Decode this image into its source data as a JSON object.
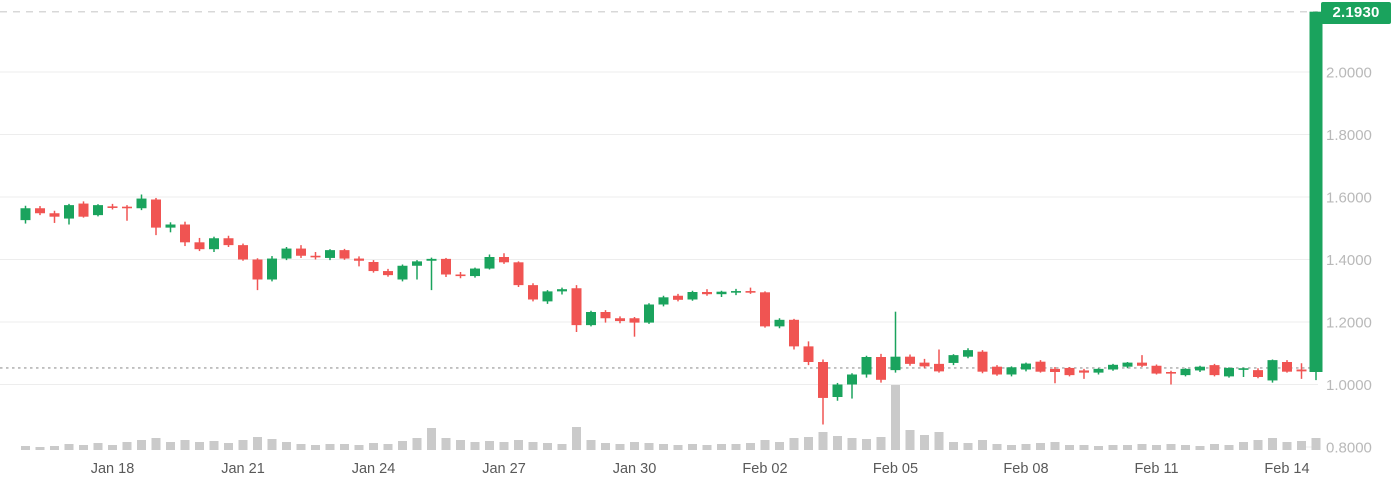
{
  "chart_data": {
    "type": "candlestick",
    "title": "",
    "xlabel": "",
    "ylabel": "",
    "last_price_label": "2.1930",
    "last_price": 2.193,
    "dotted_reference_level": 1.053,
    "ylim": [
      0.8,
      2.24
    ],
    "grid": true,
    "candles_per_day": 3,
    "y_axis": {
      "labels": [
        "2.0000",
        "1.8000",
        "1.6000",
        "1.4000",
        "1.2000",
        "1.0000",
        "0.8000"
      ],
      "values": [
        2.0,
        1.8,
        1.6,
        1.4,
        1.2,
        1.0,
        0.8
      ]
    },
    "x_axis": {
      "labels": [
        {
          "label": "Jan 18",
          "candle_index": 6
        },
        {
          "label": "Jan 21",
          "candle_index": 15
        },
        {
          "label": "Jan 24",
          "candle_index": 24
        },
        {
          "label": "Jan 27",
          "candle_index": 33
        },
        {
          "label": "Jan 30",
          "candle_index": 42
        },
        {
          "label": "Feb 02",
          "candle_index": 51
        },
        {
          "label": "Feb 05",
          "candle_index": 60
        },
        {
          "label": "Feb 08",
          "candle_index": 69
        },
        {
          "label": "Feb 11",
          "candle_index": 78
        },
        {
          "label": "Feb 14",
          "candle_index": 87
        }
      ]
    },
    "colors": {
      "up": "#1AA35D",
      "down": "#F05452",
      "volume": "#CACACA",
      "grid": "#EDEDED",
      "dashed_line": "#D8D8D8",
      "dotted_line": "#B5B5B5",
      "y_label": "#B9B9B9",
      "x_label": "#595959",
      "badge_text": "#FFFFFF",
      "background": "#FFFFFF"
    },
    "candles_format": [
      "open",
      "high",
      "low",
      "close",
      "relative_volume"
    ],
    "candles": [
      [
        1.526,
        1.572,
        1.515,
        1.564,
        4
      ],
      [
        1.564,
        1.571,
        1.542,
        1.548,
        3
      ],
      [
        1.548,
        1.556,
        1.517,
        1.537,
        4
      ],
      [
        1.531,
        1.578,
        1.512,
        1.574,
        6
      ],
      [
        1.579,
        1.586,
        1.534,
        1.537,
        5
      ],
      [
        1.542,
        1.577,
        1.538,
        1.574,
        7
      ],
      [
        1.57,
        1.578,
        1.56,
        1.569,
        5
      ],
      [
        1.569,
        1.574,
        1.524,
        1.566,
        8
      ],
      [
        1.564,
        1.608,
        1.558,
        1.595,
        10
      ],
      [
        1.592,
        1.597,
        1.478,
        1.502,
        12
      ],
      [
        1.502,
        1.519,
        1.487,
        1.512,
        8
      ],
      [
        1.512,
        1.521,
        1.443,
        1.455,
        10
      ],
      [
        1.455,
        1.469,
        1.427,
        1.433,
        8
      ],
      [
        1.433,
        1.473,
        1.424,
        1.468,
        9
      ],
      [
        1.468,
        1.476,
        1.44,
        1.446,
        7
      ],
      [
        1.446,
        1.451,
        1.396,
        1.4,
        10
      ],
      [
        1.4,
        1.404,
        1.302,
        1.336,
        13
      ],
      [
        1.336,
        1.411,
        1.33,
        1.403,
        11
      ],
      [
        1.403,
        1.44,
        1.398,
        1.435,
        8
      ],
      [
        1.435,
        1.446,
        1.405,
        1.412,
        6
      ],
      [
        1.412,
        1.424,
        1.4,
        1.408,
        5
      ],
      [
        1.405,
        1.433,
        1.398,
        1.43,
        6
      ],
      [
        1.43,
        1.434,
        1.399,
        1.403,
        6
      ],
      [
        1.403,
        1.41,
        1.378,
        1.396,
        5
      ],
      [
        1.392,
        1.398,
        1.358,
        1.363,
        7
      ],
      [
        1.363,
        1.37,
        1.345,
        1.35,
        6
      ],
      [
        1.336,
        1.384,
        1.33,
        1.38,
        9
      ],
      [
        1.38,
        1.398,
        1.336,
        1.394,
        12
      ],
      [
        1.396,
        1.406,
        1.302,
        1.402,
        22
      ],
      [
        1.402,
        1.405,
        1.344,
        1.352,
        12
      ],
      [
        1.352,
        1.36,
        1.34,
        1.347,
        10
      ],
      [
        1.347,
        1.374,
        1.342,
        1.371,
        8
      ],
      [
        1.371,
        1.416,
        1.368,
        1.408,
        9
      ],
      [
        1.408,
        1.42,
        1.386,
        1.391,
        8
      ],
      [
        1.391,
        1.394,
        1.312,
        1.318,
        10
      ],
      [
        1.318,
        1.324,
        1.266,
        1.272,
        8
      ],
      [
        1.266,
        1.302,
        1.258,
        1.298,
        7
      ],
      [
        1.298,
        1.31,
        1.288,
        1.305,
        6
      ],
      [
        1.308,
        1.318,
        1.168,
        1.19,
        23
      ],
      [
        1.19,
        1.236,
        1.186,
        1.232,
        10
      ],
      [
        1.232,
        1.238,
        1.198,
        1.212,
        7
      ],
      [
        1.212,
        1.218,
        1.196,
        1.203,
        6
      ],
      [
        1.212,
        1.216,
        1.153,
        1.198,
        8
      ],
      [
        1.198,
        1.26,
        1.194,
        1.256,
        7
      ],
      [
        1.256,
        1.284,
        1.25,
        1.279,
        6
      ],
      [
        1.284,
        1.29,
        1.266,
        1.271,
        5
      ],
      [
        1.272,
        1.3,
        1.268,
        1.296,
        6
      ],
      [
        1.296,
        1.305,
        1.284,
        1.289,
        5
      ],
      [
        1.289,
        1.3,
        1.28,
        1.297,
        6
      ],
      [
        1.297,
        1.306,
        1.286,
        1.299,
        6
      ],
      [
        1.299,
        1.31,
        1.29,
        1.295,
        7
      ],
      [
        1.295,
        1.298,
        1.182,
        1.186,
        10
      ],
      [
        1.186,
        1.212,
        1.18,
        1.207,
        8
      ],
      [
        1.207,
        1.21,
        1.112,
        1.122,
        12
      ],
      [
        1.122,
        1.138,
        1.062,
        1.072,
        13
      ],
      [
        1.072,
        1.08,
        0.872,
        0.957,
        18
      ],
      [
        0.96,
        1.005,
        0.948,
        1.0,
        14
      ],
      [
        1.0,
        1.036,
        0.955,
        1.032,
        12
      ],
      [
        1.032,
        1.092,
        1.022,
        1.088,
        11
      ],
      [
        1.088,
        1.098,
        1.006,
        1.015,
        13
      ],
      [
        1.046,
        1.233,
        1.038,
        1.089,
        65
      ],
      [
        1.089,
        1.096,
        1.06,
        1.066,
        20
      ],
      [
        1.07,
        1.082,
        1.052,
        1.058,
        15
      ],
      [
        1.066,
        1.112,
        1.038,
        1.042,
        18
      ],
      [
        1.069,
        1.097,
        1.062,
        1.094,
        8
      ],
      [
        1.089,
        1.116,
        1.084,
        1.11,
        7
      ],
      [
        1.105,
        1.11,
        1.036,
        1.041,
        10
      ],
      [
        1.057,
        1.062,
        1.028,
        1.032,
        6
      ],
      [
        1.032,
        1.058,
        1.026,
        1.055,
        5
      ],
      [
        1.048,
        1.07,
        1.042,
        1.067,
        6
      ],
      [
        1.073,
        1.078,
        1.038,
        1.041,
        7
      ],
      [
        1.05,
        1.056,
        1.004,
        1.04,
        8
      ],
      [
        1.053,
        1.056,
        1.026,
        1.03,
        5
      ],
      [
        1.045,
        1.05,
        1.018,
        1.038,
        5
      ],
      [
        1.038,
        1.052,
        1.032,
        1.05,
        4
      ],
      [
        1.048,
        1.066,
        1.044,
        1.063,
        5
      ],
      [
        1.057,
        1.072,
        1.052,
        1.07,
        5
      ],
      [
        1.07,
        1.094,
        1.056,
        1.06,
        6
      ],
      [
        1.06,
        1.064,
        1.032,
        1.035,
        5
      ],
      [
        1.04,
        1.044,
        1.0,
        1.038,
        6
      ],
      [
        1.03,
        1.052,
        1.026,
        1.05,
        5
      ],
      [
        1.045,
        1.06,
        1.04,
        1.057,
        4
      ],
      [
        1.062,
        1.066,
        1.026,
        1.03,
        6
      ],
      [
        1.026,
        1.055,
        1.022,
        1.053,
        5
      ],
      [
        1.048,
        1.054,
        1.024,
        1.052,
        8
      ],
      [
        1.046,
        1.052,
        1.02,
        1.024,
        10
      ],
      [
        1.013,
        1.08,
        1.006,
        1.078,
        12
      ],
      [
        1.072,
        1.078,
        1.038,
        1.041,
        8
      ],
      [
        1.048,
        1.068,
        1.018,
        1.042,
        9
      ],
      [
        1.04,
        2.193,
        1.014,
        2.193,
        12
      ]
    ]
  }
}
